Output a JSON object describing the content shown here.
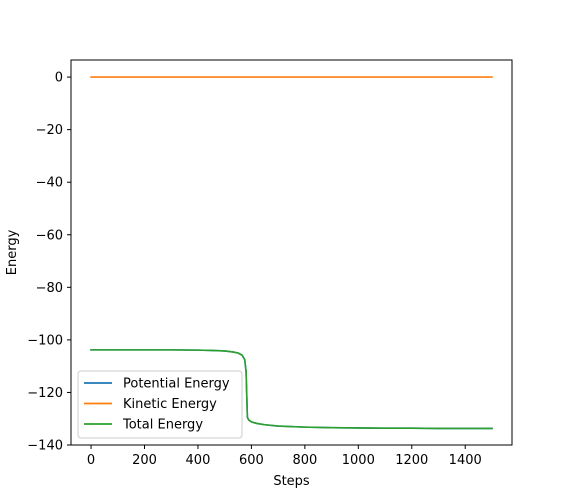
{
  "chart_data": {
    "type": "line",
    "title": "",
    "xlabel": "Steps",
    "ylabel": "Energy",
    "xlim": [
      -75,
      1575
    ],
    "ylim": [
      -140,
      6.5
    ],
    "xticks": [
      0,
      200,
      400,
      600,
      800,
      1000,
      1200,
      1400
    ],
    "yticks": [
      0,
      -20,
      -40,
      -60,
      -80,
      -100,
      -120,
      -140
    ],
    "xtick_labels": [
      "0",
      "200",
      "400",
      "600",
      "800",
      "1000",
      "1200",
      "1400"
    ],
    "ytick_labels": [
      "0",
      "−20",
      "−40",
      "−60",
      "−80",
      "−100",
      "−120",
      "−140"
    ],
    "grid": false,
    "legend_position": "lower-left",
    "series": [
      {
        "name": "Potential Energy",
        "color": "#1f77b4",
        "x": [
          0,
          100,
          200,
          300,
          400,
          450,
          500,
          530,
          550,
          565,
          575,
          580,
          585,
          590,
          600,
          620,
          650,
          700,
          800,
          900,
          1000,
          1100,
          1200,
          1300,
          1400,
          1500
        ],
        "y": [
          -103.8,
          -103.8,
          -103.8,
          -103.8,
          -103.9,
          -104.0,
          -104.2,
          -104.6,
          -105.0,
          -105.8,
          -107.5,
          -112.0,
          -129.5,
          -130.5,
          -131.2,
          -131.8,
          -132.3,
          -132.8,
          -133.2,
          -133.4,
          -133.5,
          -133.6,
          -133.6,
          -133.7,
          -133.7,
          -133.7
        ]
      },
      {
        "name": "Kinetic Energy",
        "color": "#ff7f0e",
        "x": [
          0,
          1500
        ],
        "y": [
          0,
          0
        ]
      },
      {
        "name": "Total Energy",
        "color": "#2ca02c",
        "x": [
          0,
          100,
          200,
          300,
          400,
          450,
          500,
          530,
          550,
          565,
          575,
          580,
          585,
          590,
          600,
          620,
          650,
          700,
          800,
          900,
          1000,
          1100,
          1200,
          1300,
          1400,
          1500
        ],
        "y": [
          -103.8,
          -103.8,
          -103.8,
          -103.8,
          -103.9,
          -104.0,
          -104.2,
          -104.6,
          -105.0,
          -105.8,
          -107.5,
          -112.0,
          -129.5,
          -130.5,
          -131.2,
          -131.8,
          -132.3,
          -132.8,
          -133.2,
          -133.4,
          -133.5,
          -133.6,
          -133.6,
          -133.7,
          -133.7,
          -133.7
        ]
      }
    ]
  }
}
